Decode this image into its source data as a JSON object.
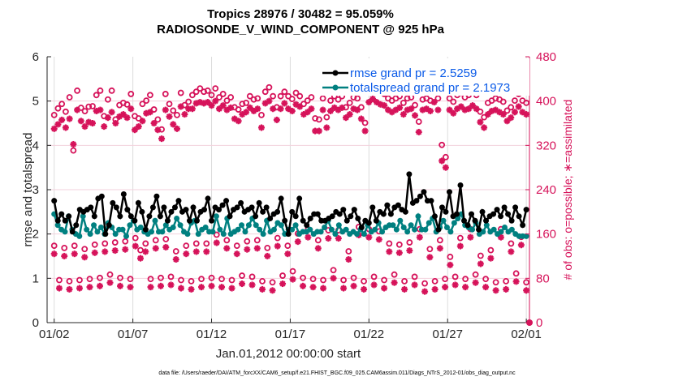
{
  "chart_data": {
    "type": "line",
    "title": [
      "Tropics 28976 / 30482 = 95.059%",
      "RADIOSONDE_V_WIND_COMPONENT @ 925 hPa"
    ],
    "xlabel": "Jan.01,2012 00:00:00 start",
    "ylabel": "rmse and totalspread",
    "ylabel_right": "# of obs: o=possible; ∗=assimilated",
    "xticks": [
      "01/02",
      "01/07",
      "01/12",
      "01/17",
      "01/22",
      "01/27",
      "02/01"
    ],
    "xtick_days": [
      1,
      6,
      11,
      16,
      21,
      26,
      31
    ],
    "xlim_days": [
      0.55,
      31.2
    ],
    "yticks": [
      0,
      1,
      2,
      3,
      4,
      5,
      6
    ],
    "ylim": [
      0,
      6
    ],
    "yticks_right": [
      0,
      80,
      160,
      240,
      320,
      400,
      480
    ],
    "ylim_right": [
      0,
      480
    ],
    "grid": true,
    "legend_position": "top-right",
    "legend": [
      {
        "name": "rmse grand pr = 2.5259",
        "color": "#000000"
      },
      {
        "name": "totalspread grand pr = 2.1973",
        "color": "#008080"
      }
    ],
    "series": [
      {
        "name": "rmse",
        "color": "#000000",
        "axis": "left",
        "values": [
          2.75,
          2.3,
          2.45,
          2.3,
          2.4,
          2.05,
          2.2,
          2.55,
          2.5,
          2.55,
          2.6,
          2.4,
          2.8,
          2.85,
          2.0,
          2.2,
          2.7,
          2.6,
          2.4,
          2.9,
          2.55,
          2.4,
          2.3,
          2.7,
          2.5,
          2.1,
          2.4,
          2.6,
          2.85,
          2.4,
          2.6,
          2.3,
          2.5,
          2.6,
          2.75,
          2.5,
          2.55,
          2.3,
          2.6,
          2.3,
          2.5,
          2.55,
          2.8,
          2.3,
          2.6,
          2.55,
          2.65,
          2.75,
          2.4,
          2.55,
          2.6,
          2.7,
          2.5,
          2.55,
          2.6,
          2.4,
          2.7,
          2.5,
          2.6,
          2.35,
          2.45,
          2.5,
          2.8,
          2.3,
          2.0,
          2.5,
          2.4,
          2.8,
          2.3,
          2.2,
          2.35,
          2.45,
          2.45,
          2.3,
          2.3,
          2.35,
          2.4,
          2.5,
          2.45,
          2.55,
          2.3,
          2.4,
          2.55,
          2.35,
          2.15,
          2.3,
          2.25,
          2.6,
          2.3,
          2.5,
          2.45,
          2.65,
          2.45,
          2.6,
          2.65,
          2.55,
          2.5,
          3.35,
          2.7,
          2.75,
          2.85,
          2.95,
          2.75,
          2.75,
          2.4,
          2.1,
          2.6,
          2.5,
          2.95,
          2.4,
          2.45,
          3.1,
          2.3,
          2.2,
          2.45,
          2.3,
          2.1,
          2.5,
          2.3,
          2.4,
          2.45,
          2.55,
          2.4,
          2.6,
          2.45,
          2.3,
          2.6,
          2.4,
          2.2,
          2.55
        ]
      },
      {
        "name": "totalspread",
        "color": "#008080",
        "axis": "left",
        "values": [
          2.45,
          2.2,
          2.1,
          2.05,
          2.4,
          2.1,
          2.0,
          1.95,
          2.4,
          2.1,
          2.0,
          2.2,
          2.05,
          2.15,
          2.0,
          2.25,
          2.15,
          2.0,
          2.1,
          2.1,
          1.95,
          2.2,
          2.3,
          2.1,
          2.15,
          2.05,
          2.0,
          2.05,
          2.3,
          2.05,
          2.05,
          2.2,
          2.1,
          2.15,
          2.35,
          2.2,
          2.05,
          2.0,
          2.25,
          2.3,
          2.0,
          2.1,
          2.15,
          2.05,
          2.05,
          2.4,
          2.1,
          2.0,
          2.35,
          2.0,
          2.05,
          2.1,
          2.2,
          2.05,
          2.2,
          2.35,
          2.2,
          2.1,
          2.0,
          2.3,
          2.05,
          2.1,
          2.25,
          2.2,
          2.0,
          2.1,
          2.1,
          2.2,
          2.0,
          2.05,
          2.05,
          2.1,
          2.0,
          2.05,
          2.05,
          2.15,
          2.3,
          2.1,
          2.0,
          2.2,
          2.05,
          2.1,
          2.0,
          2.05,
          2.0,
          2.1,
          2.0,
          2.2,
          2.05,
          2.1,
          2.25,
          2.05,
          2.15,
          2.2,
          2.2,
          2.1,
          2.3,
          2.15,
          2.05,
          2.2,
          2.1,
          2.4,
          2.1,
          2.1,
          2.25,
          2.35,
          2.05,
          2.15,
          2.3,
          2.15,
          2.05,
          2.25,
          2.35,
          2.45,
          2.2,
          2.15,
          2.1,
          2.25,
          2.0,
          2.05,
          2.2,
          2.05,
          2.1,
          2.0,
          2.05,
          2.15,
          2.05,
          2.1,
          2.0,
          1.95,
          1.95,
          1.95
        ]
      },
      {
        "name": "possible",
        "color": "#d6135a",
        "axis": "right",
        "marker": "o",
        "values": [
          366,
          378,
          386,
          372,
          398,
          302,
          410,
          379,
          373,
          381,
          382,
          402,
          410,
          364,
          394,
          410,
          358,
          384,
          388,
          385,
          404,
          364,
          360,
          386,
          392,
          402,
          376,
          358,
          340,
          404,
          386,
          374,
          366,
          406,
          384,
          390,
          402,
          408,
          414,
          408,
          410,
          402,
          414,
          398,
          404,
          392,
          398,
          380,
          376,
          386,
          388,
          400,
          394,
          396,
          366,
          408,
          416,
          400,
          380,
          400,
          408,
          400,
          395,
          406,
          400,
          386,
          392,
          398,
          360,
          358,
          396,
          362,
          392,
          400,
          394,
          400,
          380,
          388,
          398,
          396,
          380,
          352,
          410,
          416,
          410,
          408,
          404,
          396,
          392,
          396,
          400,
          388,
          396,
          398,
          384,
          354,
          394,
          396,
          392,
          412,
          396,
          312,
          290,
          396,
          390,
          402,
          406,
          398,
          402,
          408,
          402,
          372,
          362,
          388,
          392,
          396,
          394,
          390,
          374,
          380,
          392,
          404,
          392,
          388
        ]
      },
      {
        "name": "assimilated",
        "color": "#d6135a",
        "axis": "right",
        "marker": "*",
        "values": [
          350,
          358,
          366,
          352,
          368,
          322,
          384,
          364,
          354,
          362,
          360,
          382,
          384,
          354,
          370,
          380,
          360,
          372,
          376,
          370,
          386,
          348,
          354,
          364,
          378,
          380,
          360,
          348,
          332,
          384,
          372,
          358,
          350,
          390,
          376,
          386,
          386,
          396,
          398,
          396,
          398,
          392,
          400,
          386,
          392,
          384,
          388,
          368,
          364,
          376,
          380,
          388,
          382,
          386,
          352,
          396,
          400,
          386,
          366,
          386,
          396,
          386,
          382,
          394,
          390,
          376,
          380,
          386,
          346,
          346,
          384,
          352,
          382,
          388,
          384,
          388,
          370,
          376,
          386,
          384,
          368,
          346,
          398,
          404,
          398,
          394,
          392,
          384,
          380,
          384,
          388,
          376,
          384,
          386,
          374,
          344,
          384,
          386,
          382,
          398,
          384,
          292,
          280,
          384,
          378,
          386,
          390,
          384,
          386,
          392,
          386,
          362,
          352,
          376,
          382,
          384,
          380,
          376,
          364,
          370,
          380,
          390,
          380,
          376
        ]
      },
      {
        "name": "possible_low",
        "color": "#d6135a",
        "axis": "right",
        "marker": "o",
        "values": [
          130,
          68,
          126,
          66,
          130,
          68,
          124,
          70,
          132,
          72,
          134,
          78,
          136,
          72,
          138,
          70,
          144,
          122,
          134,
          70,
          140,
          72,
          142,
          74,
          120,
          68,
          130,
          66,
          134,
          70,
          134,
          72,
          150,
          70,
          140,
          68,
          130,
          76,
          138,
          74,
          140,
          66,
          126,
          64,
          144,
          76,
          130,
          84,
          152,
          72,
          160,
          70,
          140,
          68,
          158,
          86,
          158,
          68,
          120,
          72,
          164,
          66,
          160,
          74,
          156,
          68,
          134,
          78,
          132,
          66,
          136,
          74,
          160,
          62,
          124,
          66,
          140,
          70,
          110,
          74,
          144,
          70,
          160,
          78,
          112,
          70,
          122,
          64,
          160,
          66,
          134,
          80,
          146,
          64
        ]
      }
    ]
  },
  "footer": "data file: /Users/raeder/DAI/ATM_forcXX/CAM6_setup/f.e21.FHIST_BGC.f09_025.CAM6assim.011/Diags_NTrS_2012-01/obs_diag_output.nc"
}
